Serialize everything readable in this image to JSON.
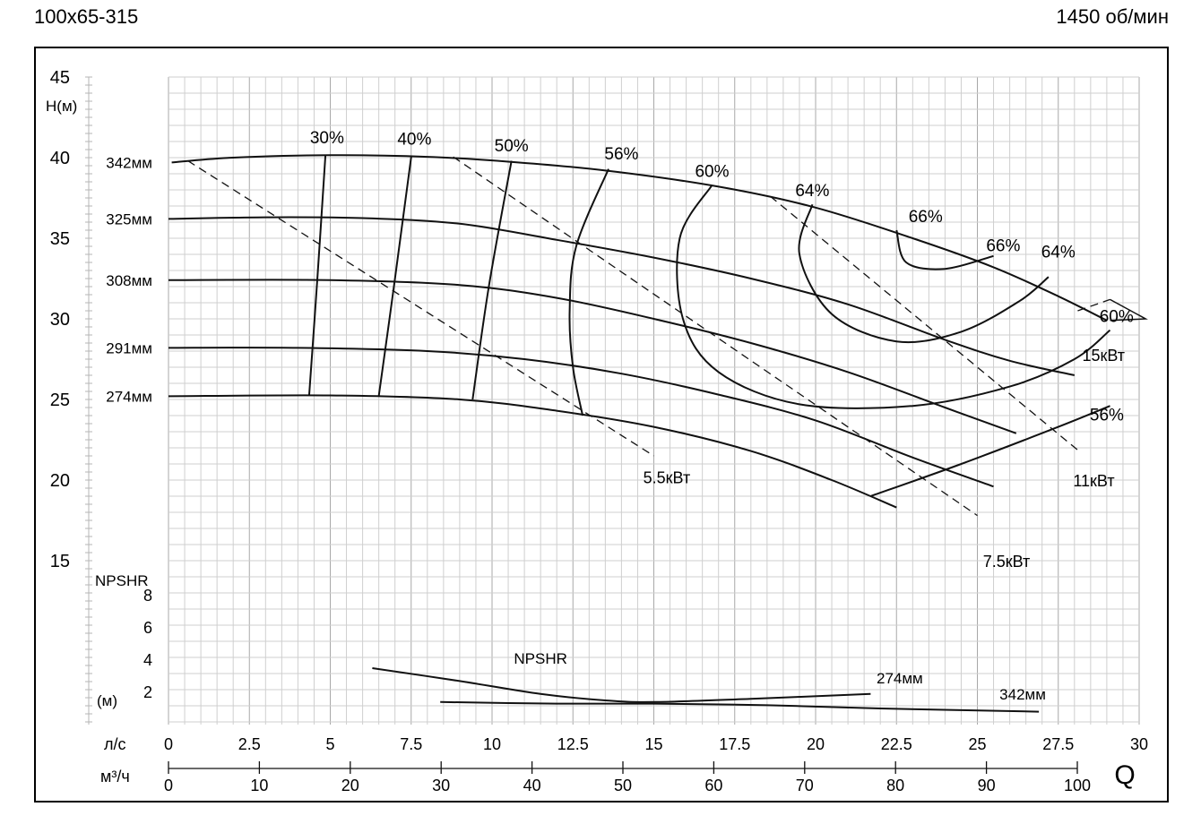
{
  "header": {
    "model": "100x65-315",
    "speed": "1450 об/мин"
  },
  "chart_data": {
    "type": "line",
    "title": "100x65-315",
    "subtitle": "1450 об/мин",
    "xlabel": "Q",
    "grid": true,
    "head_axis": {
      "label": "H(м)",
      "ylim": [
        14,
        45
      ],
      "ticks": [
        "15",
        "20",
        "25",
        "30",
        "35",
        "40",
        "45"
      ]
    },
    "npsh_axis": {
      "label": "NPSHR",
      "unit_label": "(м)",
      "ylim": [
        0,
        9
      ],
      "ticks": [
        "2",
        "4",
        "6",
        "8"
      ]
    },
    "flow_axis_ls": {
      "label": "л/с",
      "xlim": [
        0,
        30
      ],
      "ticks": [
        "0",
        "2.5",
        "5",
        "7.5",
        "10",
        "12.5",
        "15",
        "17.5",
        "20",
        "22.5",
        "25",
        "27.5",
        "30"
      ]
    },
    "flow_axis_m3h": {
      "label": "м³/ч",
      "ticks": [
        "0",
        "10",
        "20",
        "30",
        "40",
        "50",
        "60",
        "70",
        "80",
        "90",
        "100"
      ]
    },
    "series": [
      {
        "name": "342мм",
        "kind": "head",
        "points": [
          [
            0.1,
            39.7
          ],
          [
            2,
            40
          ],
          [
            5,
            40.15
          ],
          [
            8,
            40.05
          ],
          [
            10.5,
            39.75
          ],
          [
            13.5,
            39.2
          ],
          [
            17,
            38.2
          ],
          [
            20,
            36.9
          ],
          [
            23,
            35
          ],
          [
            25.5,
            33.2
          ],
          [
            27.5,
            31.4
          ],
          [
            29,
            29.9
          ]
        ]
      },
      {
        "name": "325мм",
        "kind": "head",
        "points": [
          [
            0,
            36.2
          ],
          [
            3,
            36.3
          ],
          [
            6,
            36.25
          ],
          [
            9,
            35.9
          ],
          [
            12,
            34.9
          ],
          [
            15,
            33.8
          ],
          [
            18,
            32.5
          ],
          [
            21,
            30.9
          ],
          [
            24,
            28.7
          ],
          [
            26,
            27.4
          ],
          [
            28,
            26.5
          ]
        ]
      },
      {
        "name": "308мм",
        "kind": "head",
        "points": [
          [
            0,
            32.4
          ],
          [
            5,
            32.4
          ],
          [
            9,
            32.1
          ],
          [
            12,
            31.3
          ],
          [
            15,
            30
          ],
          [
            18,
            28.5
          ],
          [
            21,
            26.7
          ],
          [
            24,
            24.5
          ],
          [
            26.2,
            22.9
          ]
        ]
      },
      {
        "name": "291мм",
        "kind": "head",
        "points": [
          [
            0,
            28.2
          ],
          [
            4,
            28.2
          ],
          [
            8,
            28
          ],
          [
            11,
            27.5
          ],
          [
            14,
            26.6
          ],
          [
            17,
            25.3
          ],
          [
            20,
            23.7
          ],
          [
            23,
            21.4
          ],
          [
            25.5,
            19.6
          ]
        ]
      },
      {
        "name": "274мм",
        "kind": "head",
        "points": [
          [
            0,
            25.2
          ],
          [
            5,
            25.25
          ],
          [
            9,
            25
          ],
          [
            12,
            24.3
          ],
          [
            15,
            23.3
          ],
          [
            18,
            21.8
          ],
          [
            20.5,
            20
          ],
          [
            22.5,
            18.3
          ]
        ]
      },
      {
        "name": "30%",
        "kind": "efficiency",
        "points": [
          [
            4.85,
            40.15
          ],
          [
            4.6,
            32.5
          ],
          [
            4.35,
            25.3
          ]
        ]
      },
      {
        "name": "40%",
        "kind": "efficiency",
        "points": [
          [
            7.5,
            40.05
          ],
          [
            7,
            32.5
          ],
          [
            6.5,
            25.2
          ]
        ]
      },
      {
        "name": "50%",
        "kind": "efficiency",
        "points": [
          [
            10.6,
            39.8
          ],
          [
            9.9,
            32
          ],
          [
            9.4,
            25
          ]
        ]
      },
      {
        "name": "56%",
        "kind": "efficiency",
        "points": [
          [
            13.6,
            39.3
          ],
          [
            12.6,
            34.5
          ],
          [
            12.4,
            30.5
          ],
          [
            12.5,
            27
          ],
          [
            12.8,
            24
          ]
        ]
      },
      {
        "name": "60%",
        "kind": "efficiency",
        "points": [
          [
            16.8,
            38.3
          ],
          [
            15.8,
            35
          ],
          [
            15.9,
            30
          ],
          [
            17,
            26.7
          ],
          [
            19.5,
            24.7
          ],
          [
            23,
            24.6
          ],
          [
            26,
            25.8
          ],
          [
            28,
            27.5
          ],
          [
            29.1,
            29.3
          ]
        ]
      },
      {
        "name": "64%",
        "kind": "efficiency",
        "points": [
          [
            19.9,
            37.1
          ],
          [
            19.5,
            34
          ],
          [
            20.5,
            30.3
          ],
          [
            22.5,
            28.6
          ],
          [
            24.5,
            29.2
          ],
          [
            26.3,
            31.1
          ],
          [
            27.2,
            32.6
          ]
        ]
      },
      {
        "name": "66%",
        "kind": "efficiency",
        "points": [
          [
            22.5,
            35.5
          ],
          [
            22.8,
            33.5
          ],
          [
            24,
            33.1
          ],
          [
            25.5,
            33.9
          ]
        ]
      },
      {
        "name": "56%",
        "kind": "efficiency",
        "points": [
          [
            21.7,
            19
          ],
          [
            24.5,
            21
          ],
          [
            27.5,
            23.3
          ],
          [
            29.1,
            24.6
          ]
        ]
      },
      {
        "name": "5.5кВт",
        "kind": "power",
        "points": [
          [
            0.6,
            39.8
          ],
          [
            15,
            21.5
          ]
        ]
      },
      {
        "name": "7.5кВт",
        "kind": "power",
        "points": [
          [
            8.8,
            40.05
          ],
          [
            25,
            17.8
          ]
        ]
      },
      {
        "name": "11кВт",
        "kind": "power",
        "points": [
          [
            18.6,
            37.6
          ],
          [
            28.2,
            21.7
          ]
        ]
      },
      {
        "name": "NPSHR 274мм",
        "kind": "npshr",
        "label": "274мм",
        "points": [
          [
            6.3,
            3.5
          ],
          [
            9,
            2.7
          ],
          [
            11.5,
            1.9
          ],
          [
            13.5,
            1.5
          ],
          [
            15,
            1.4
          ],
          [
            18,
            1.6
          ],
          [
            21.7,
            1.9
          ]
        ]
      },
      {
        "name": "NPSHR 342мм",
        "kind": "npshr",
        "label": "342мм",
        "points": [
          [
            8.4,
            1.4
          ],
          [
            12,
            1.3
          ],
          [
            15,
            1.3
          ],
          [
            18.5,
            1.2
          ],
          [
            22,
            1
          ],
          [
            26.9,
            0.8
          ]
        ]
      }
    ],
    "labels": {
      "diameters": [
        "342мм",
        "325мм",
        "308мм",
        "291мм",
        "274мм"
      ],
      "efficiency": [
        "30%",
        "40%",
        "50%",
        "56%",
        "60%",
        "64%",
        "66%",
        "66%",
        "64%",
        "60%",
        "56%"
      ],
      "power": [
        "5.5кВт",
        "7.5кВт",
        "11кВт",
        "15кВт"
      ],
      "npshr_curve_label": "NPSHR",
      "npshr_274": "274мм",
      "npshr_342": "342мм"
    }
  }
}
